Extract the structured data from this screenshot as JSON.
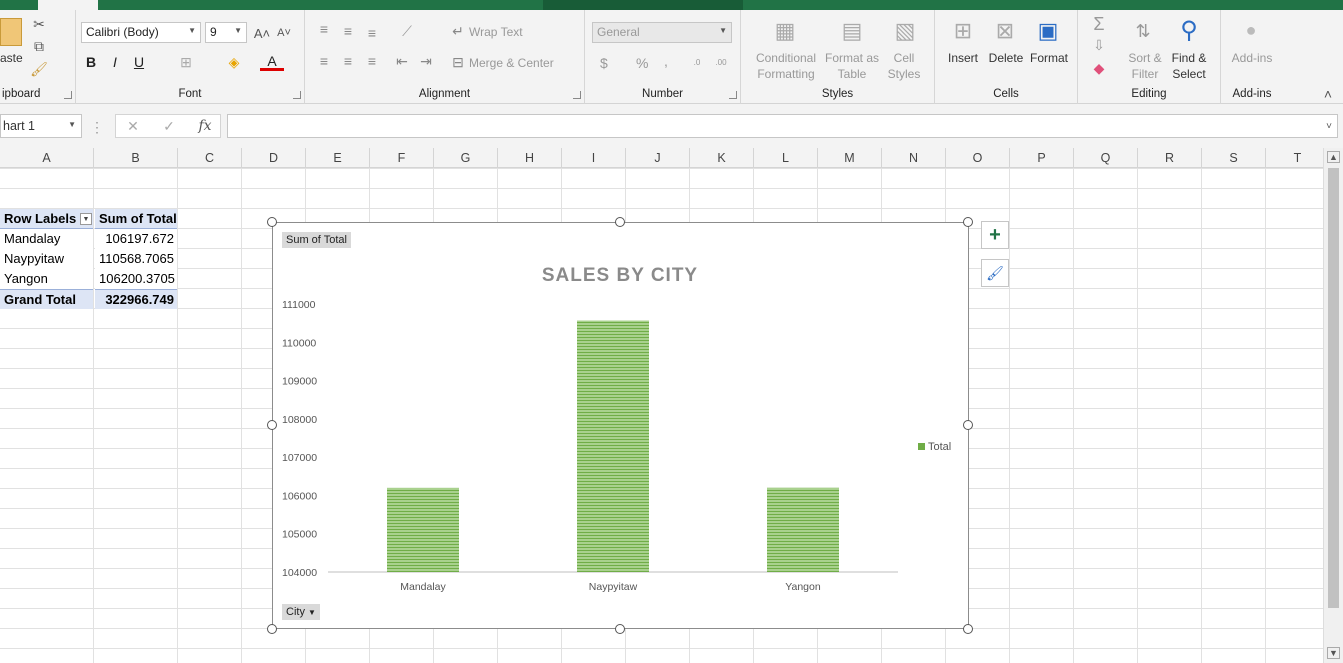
{
  "ribbon": {
    "clipboard": {
      "paste_label": "aste",
      "group_label": "ipboard"
    },
    "font": {
      "font_name": "Calibri (Body)",
      "font_size": "9",
      "group_label": "Font"
    },
    "alignment": {
      "wrap_text": "Wrap Text",
      "merge_center": "Merge & Center",
      "group_label": "Alignment"
    },
    "number": {
      "format": "General",
      "currency": "$",
      "percent": "%",
      "comma": ",",
      "group_label": "Number"
    },
    "styles": {
      "conditional": [
        "Conditional",
        "Formatting"
      ],
      "format_table": [
        "Format as",
        "Table"
      ],
      "cell_styles": [
        "Cell",
        "Styles"
      ],
      "group_label": "Styles"
    },
    "cells": {
      "insert": "Insert",
      "delete": "Delete",
      "format": "Format",
      "group_label": "Cells"
    },
    "editing": {
      "sort_filter": [
        "Sort &",
        "Filter"
      ],
      "find_select": [
        "Find &",
        "Select"
      ],
      "group_label": "Editing"
    },
    "addins": {
      "label": "Add-ins",
      "group_label": "Add-ins"
    }
  },
  "formula_bar": {
    "name_box": "hart 1",
    "fx": "fx",
    "content": ""
  },
  "columns": [
    "A",
    "B",
    "C",
    "D",
    "E",
    "F",
    "G",
    "H",
    "I",
    "J",
    "K",
    "L",
    "M",
    "N",
    "O",
    "P",
    "Q",
    "R",
    "S",
    "T"
  ],
  "pivot": {
    "header_labels": "Row Labels",
    "header_sum": "Sum of Total",
    "rows": [
      {
        "label": "Mandalay",
        "value": "106197.672"
      },
      {
        "label": "Naypyitaw",
        "value": "110568.7065"
      },
      {
        "label": "Yangon",
        "value": "106200.3705"
      }
    ],
    "total_label": "Grand Total",
    "total_value": "322966.749"
  },
  "chart_field_buttons": {
    "value_field": "Sum of Total",
    "axis_field": "City"
  },
  "colors": {
    "accent": "#217346",
    "bar": "#70ad47",
    "pivot_header": "#dde5f5"
  },
  "chart_data": {
    "type": "bar",
    "title": "SALES BY CITY",
    "categories": [
      "Mandalay",
      "Naypyitaw",
      "Yangon"
    ],
    "series": [
      {
        "name": "Total",
        "values": [
          106197.672,
          110568.7065,
          106200.3705
        ]
      }
    ],
    "ylim": [
      104000,
      111000
    ],
    "yticks": [
      "104000",
      "105000",
      "106000",
      "107000",
      "108000",
      "109000",
      "110000",
      "111000"
    ],
    "xlabel": "",
    "ylabel": "",
    "legend": "right",
    "legend_entry": "Total"
  }
}
